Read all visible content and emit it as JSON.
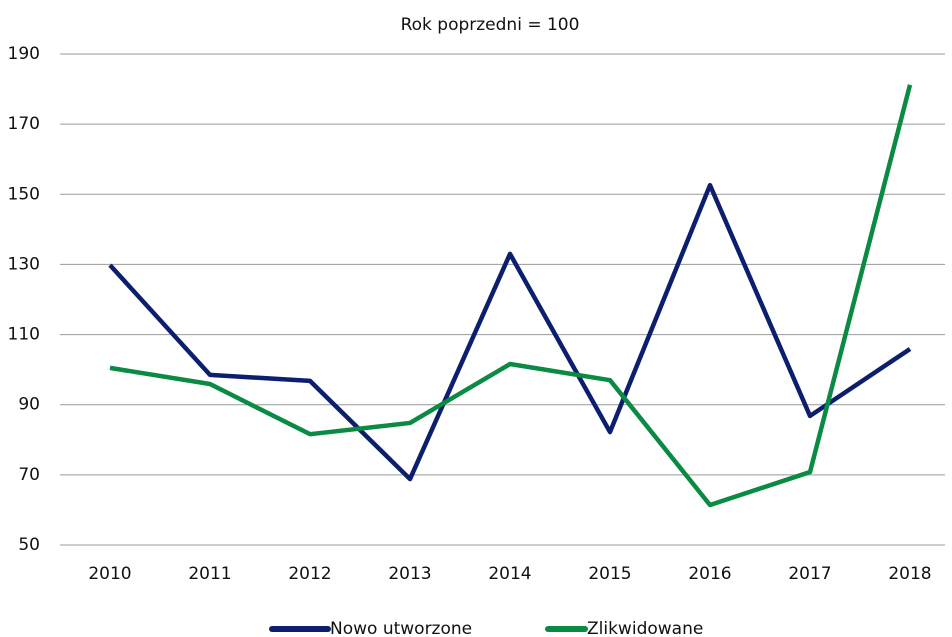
{
  "chart_data": {
    "type": "line",
    "title": "Rok poprzedni = 100",
    "categories": [
      "2010",
      "2011",
      "2012",
      "2013",
      "2014",
      "2015",
      "2016",
      "2017",
      "2018"
    ],
    "series": [
      {
        "name": "Nowo utworzone",
        "color": "#0c1f6e",
        "values": [
          129.8,
          98.5,
          96.8,
          68.8,
          133,
          82.2,
          152.6,
          86.8,
          105.9
        ]
      },
      {
        "name": "Zlikwidowane",
        "color": "#0b8a43",
        "values": [
          100.5,
          95.9,
          81.6,
          84.8,
          101.6,
          97,
          61.4,
          70.8,
          181.2
        ]
      }
    ],
    "ylim": [
      50,
      190
    ],
    "yticks": [
      50,
      70,
      90,
      110,
      130,
      150,
      170,
      190
    ],
    "grid": true,
    "legend": "bottom"
  }
}
